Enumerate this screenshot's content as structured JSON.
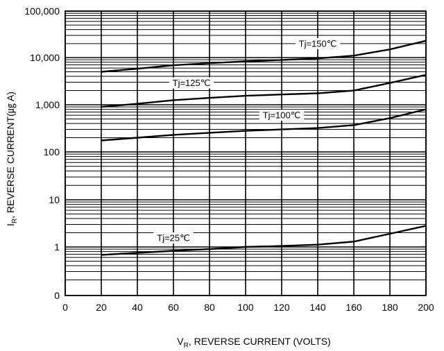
{
  "chart_data": {
    "type": "line",
    "title": "",
    "xlabel": {
      "main": "V",
      "sub": "R",
      "rest": ", REVERSE CURRENT (VOLTS)"
    },
    "ylabel": {
      "main": "I",
      "sub": "R",
      "rest": ", REVERSE CURRENT(㎍ A)"
    },
    "xlim": [
      0,
      200
    ],
    "x_ticks": [
      0,
      20,
      40,
      60,
      80,
      100,
      120,
      140,
      160,
      180,
      200
    ],
    "x_tick_labels": [
      "0",
      "20",
      "40",
      "60",
      "80",
      "100",
      "120",
      "140",
      "160",
      "180",
      "200"
    ],
    "y_scale": "log",
    "y_tick_labels": [
      "0",
      "1",
      "10",
      "100",
      "1,000",
      "10,000",
      "100,000"
    ],
    "grid": true,
    "legend": "none",
    "x": [
      20,
      40,
      60,
      80,
      100,
      120,
      140,
      160,
      180,
      200
    ],
    "series": [
      {
        "name": "Tj=150℃",
        "values": [
          5000,
          5800,
          6900,
          7600,
          8300,
          8900,
          9600,
          11000,
          15000,
          23000
        ]
      },
      {
        "name": "Tj=125℃",
        "values": [
          900,
          1050,
          1250,
          1400,
          1550,
          1650,
          1750,
          2000,
          2900,
          4300
        ]
      },
      {
        "name": "Tj=100℃",
        "values": [
          175,
          200,
          230,
          255,
          280,
          300,
          320,
          370,
          520,
          800
        ]
      },
      {
        "name": "Tj=25℃",
        "values": [
          0.68,
          0.75,
          0.83,
          0.9,
          1.0,
          1.05,
          1.12,
          1.3,
          1.9,
          2.8
        ]
      }
    ]
  }
}
